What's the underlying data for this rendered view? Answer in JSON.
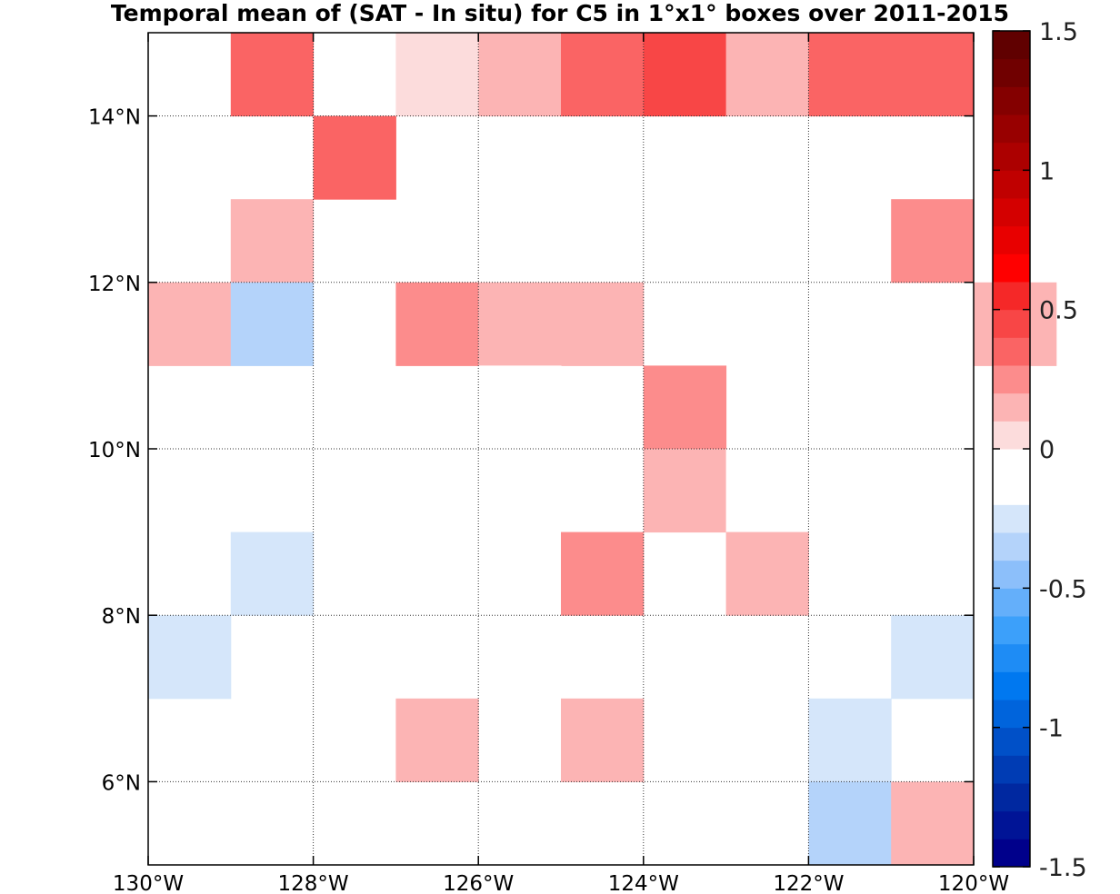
{
  "chart_data": {
    "type": "heatmap",
    "title": "Temporal mean of (SAT - In situ) for C5 in 1°x1° boxes over 2011-2015",
    "xlabel": "",
    "ylabel": "",
    "xlim": [
      -130,
      -120
    ],
    "ylim": [
      5,
      15
    ],
    "xticks": [
      {
        "value": -130,
        "label": "130°W"
      },
      {
        "value": -128,
        "label": "128°W"
      },
      {
        "value": -126,
        "label": "126°W"
      },
      {
        "value": -124,
        "label": "124°W"
      },
      {
        "value": -122,
        "label": "122°W"
      },
      {
        "value": -120,
        "label": "120°W"
      }
    ],
    "yticks": [
      {
        "value": 6,
        "label": "6°N"
      },
      {
        "value": 8,
        "label": "8°N"
      },
      {
        "value": 10,
        "label": "10°N"
      },
      {
        "value": 12,
        "label": "12°N"
      },
      {
        "value": 14,
        "label": "14°N"
      }
    ],
    "grid": true,
    "cell_size_deg": 1,
    "cells": [
      {
        "lon": -129,
        "lat": 14,
        "value": 0.35
      },
      {
        "lon": -127,
        "lat": 14,
        "value": 0.0
      },
      {
        "lon": -126,
        "lat": 14,
        "value": 0.15
      },
      {
        "lon": -125,
        "lat": 14,
        "value": 0.35
      },
      {
        "lon": -124,
        "lat": 14,
        "value": 0.45
      },
      {
        "lon": -123,
        "lat": 14,
        "value": 0.15
      },
      {
        "lon": -122,
        "lat": 14,
        "value": 0.35
      },
      {
        "lon": -121,
        "lat": 14,
        "value": 0.35
      },
      {
        "lon": -128,
        "lat": 13,
        "value": 0.35
      },
      {
        "lon": -129,
        "lat": 12,
        "value": 0.15
      },
      {
        "lon": -123,
        "lat": 12,
        "value": -0.15
      },
      {
        "lon": -121,
        "lat": 12,
        "value": 0.25
      },
      {
        "lon": -130,
        "lat": 11,
        "value": 0.15
      },
      {
        "lon": -129,
        "lat": 11,
        "value": -0.35
      },
      {
        "lon": -127,
        "lat": 11,
        "value": 0.25
      },
      {
        "lon": -126,
        "lat": 11,
        "value": 0.15
      },
      {
        "lon": -125,
        "lat": 11,
        "value": 0.15
      },
      {
        "lon": -120,
        "lat": 11,
        "value": 0.15
      },
      {
        "lon": -126,
        "lat": 10,
        "value": -0.15
      },
      {
        "lon": -124,
        "lat": 10,
        "value": 0.25
      },
      {
        "lon": -129,
        "lat": 9,
        "value": -0.15
      },
      {
        "lon": -124,
        "lat": 9,
        "value": 0.15
      },
      {
        "lon": -123,
        "lat": 9,
        "value": -0.15
      },
      {
        "lon": -129,
        "lat": 8,
        "value": -0.25
      },
      {
        "lon": -126,
        "lat": 8,
        "value": -0.15
      },
      {
        "lon": -125,
        "lat": 8,
        "value": 0.25
      },
      {
        "lon": -123,
        "lat": 8,
        "value": 0.15
      },
      {
        "lon": -121,
        "lat": 8,
        "value": -0.15
      },
      {
        "lon": -130,
        "lat": 7,
        "value": -0.25
      },
      {
        "lon": -127,
        "lat": 7,
        "value": -0.15
      },
      {
        "lon": -121,
        "lat": 7,
        "value": -0.25
      },
      {
        "lon": -127,
        "lat": 6,
        "value": 0.15
      },
      {
        "lon": -125,
        "lat": 6,
        "value": 0.15
      },
      {
        "lon": -122,
        "lat": 6,
        "value": -0.25
      },
      {
        "lon": -122,
        "lat": 5,
        "value": -0.35
      },
      {
        "lon": -121,
        "lat": 5,
        "value": 0.15
      }
    ],
    "colorbar": {
      "min": -1.5,
      "max": 1.5,
      "step": 0.1,
      "ticks": [
        {
          "value": 1.5,
          "label": "1.5"
        },
        {
          "value": 1,
          "label": "1"
        },
        {
          "value": 0.5,
          "label": "0.5"
        },
        {
          "value": 0,
          "label": "0"
        },
        {
          "value": -0.5,
          "label": "-0.5"
        },
        {
          "value": -1,
          "label": "-1"
        },
        {
          "value": -1.5,
          "label": "-1.5"
        }
      ],
      "colors_bottom_to_top": [
        "#00008b",
        "#001496",
        "#0028a0",
        "#003cb4",
        "#0050c8",
        "#0064dc",
        "#0078f0",
        "#1e8cf5",
        "#3ca0fa",
        "#64affa",
        "#8cbffa",
        "#b4d3fa",
        "#d5e6fa",
        "#ffffff",
        "#ffffff",
        "#fcdcdc",
        "#fcb4b4",
        "#fc8c8c",
        "#fa6464",
        "#f84646",
        "#f52828",
        "#ff0000",
        "#e80000",
        "#d40000",
        "#c00000",
        "#ac0000",
        "#980000",
        "#840000",
        "#700000",
        "#600000"
      ]
    }
  }
}
